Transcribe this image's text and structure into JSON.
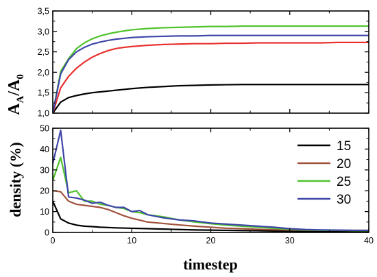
{
  "chart_data": [
    {
      "type": "line",
      "xlabel": "",
      "ylabel": "A_A/A_0",
      "ylabel_parts": {
        "a": "A",
        "a_sub": "A",
        "slash": "/",
        "b": "A",
        "b_sub": "0"
      },
      "xlim": [
        0,
        40
      ],
      "ylim": [
        1.0,
        3.5
      ],
      "y_ticks": [
        1.0,
        1.5,
        2.0,
        2.5,
        3.0,
        3.5
      ],
      "y_tick_labels": [
        "1,0",
        "1,5",
        "2,0",
        "2,5",
        "3,0",
        "3,5"
      ],
      "x_ticks": [
        0,
        10,
        20,
        30,
        40
      ],
      "grid": false,
      "series": [
        {
          "key": "15",
          "color": "#000000",
          "x": [
            0,
            1,
            2,
            3,
            4,
            5,
            6,
            7,
            8,
            9,
            10,
            12,
            14,
            16,
            18,
            20,
            22,
            24,
            26,
            28,
            30,
            32,
            34,
            36,
            38,
            40
          ],
          "values": [
            1.0,
            1.27,
            1.38,
            1.43,
            1.47,
            1.5,
            1.52,
            1.54,
            1.56,
            1.58,
            1.6,
            1.63,
            1.65,
            1.67,
            1.68,
            1.69,
            1.695,
            1.7,
            1.7,
            1.7,
            1.7,
            1.7,
            1.7,
            1.7,
            1.7,
            1.7
          ]
        },
        {
          "key": "20",
          "color": "#e8302e",
          "x": [
            0,
            1,
            2,
            3,
            4,
            5,
            6,
            7,
            8,
            9,
            10,
            12,
            14,
            16,
            18,
            20,
            22,
            24,
            26,
            28,
            30,
            32,
            34,
            36,
            38,
            40
          ],
          "values": [
            1.0,
            1.62,
            1.9,
            2.1,
            2.25,
            2.37,
            2.46,
            2.53,
            2.58,
            2.61,
            2.63,
            2.66,
            2.68,
            2.69,
            2.7,
            2.7,
            2.71,
            2.71,
            2.72,
            2.72,
            2.72,
            2.72,
            2.72,
            2.73,
            2.73,
            2.73
          ]
        },
        {
          "key": "25",
          "color": "#4ec32a",
          "x": [
            0,
            1,
            2,
            3,
            4,
            5,
            6,
            7,
            8,
            9,
            10,
            12,
            14,
            16,
            18,
            20,
            22,
            24,
            26,
            28,
            30,
            32,
            34,
            36,
            38,
            40
          ],
          "values": [
            1.0,
            2.02,
            2.33,
            2.58,
            2.72,
            2.82,
            2.89,
            2.94,
            2.98,
            3.01,
            3.04,
            3.07,
            3.09,
            3.1,
            3.11,
            3.12,
            3.12,
            3.13,
            3.13,
            3.13,
            3.13,
            3.13,
            3.13,
            3.13,
            3.13,
            3.13
          ]
        },
        {
          "key": "30",
          "color": "#3f46a8",
          "x": [
            0,
            1,
            2,
            3,
            4,
            5,
            6,
            7,
            8,
            9,
            10,
            12,
            14,
            16,
            18,
            20,
            22,
            24,
            26,
            28,
            30,
            32,
            34,
            36,
            38,
            40
          ],
          "values": [
            1.0,
            1.96,
            2.31,
            2.5,
            2.61,
            2.69,
            2.74,
            2.78,
            2.81,
            2.83,
            2.85,
            2.87,
            2.88,
            2.89,
            2.89,
            2.9,
            2.9,
            2.9,
            2.9,
            2.9,
            2.9,
            2.9,
            2.9,
            2.9,
            2.9,
            2.9
          ]
        }
      ]
    },
    {
      "type": "line",
      "xlabel": "timestep",
      "ylabel": "density (%)",
      "xlim": [
        0,
        40
      ],
      "ylim": [
        0,
        50
      ],
      "y_ticks": [
        0,
        10,
        20,
        30,
        40,
        50
      ],
      "y_tick_labels": [
        "0",
        "10",
        "20",
        "30",
        "40",
        "50"
      ],
      "x_ticks": [
        0,
        10,
        20,
        30,
        40
      ],
      "x_tick_labels": [
        "0",
        "10",
        "20",
        "30",
        "40"
      ],
      "grid": false,
      "legend_position": "right",
      "series": [
        {
          "name": "15",
          "color": "#000000",
          "x": [
            0,
            1,
            2,
            3,
            4,
            5,
            6,
            8,
            10,
            12,
            14,
            16,
            18,
            20,
            22,
            24,
            26,
            28,
            30,
            32,
            34,
            36,
            38,
            40
          ],
          "values": [
            15,
            6.5,
            4.5,
            3.5,
            3,
            2.8,
            2.5,
            2.2,
            2,
            1.8,
            1.6,
            1.4,
            1.2,
            1.1,
            1,
            0.9,
            0.8,
            0.7,
            0.6,
            0.5,
            0.5,
            0.4,
            0.4,
            0.4
          ]
        },
        {
          "name": "20",
          "color": "#a0523d",
          "x": [
            0,
            1,
            2,
            3,
            4,
            5,
            6,
            7,
            8,
            9,
            10,
            12,
            14,
            16,
            18,
            20,
            22,
            24,
            26,
            28,
            30,
            32,
            34,
            36,
            38,
            40
          ],
          "values": [
            20,
            19.5,
            15,
            13.5,
            13,
            12.5,
            12,
            11,
            9.5,
            8,
            6.8,
            5,
            4.3,
            3.6,
            3,
            2.5,
            2,
            1.8,
            1.5,
            1.3,
            1.2,
            1.1,
            1.0,
            1.0,
            1.0,
            1.0
          ]
        },
        {
          "name": "25",
          "color": "#4ec32a",
          "x": [
            0,
            1,
            2,
            3,
            4,
            5,
            6,
            7,
            8,
            9,
            10,
            11,
            12,
            14,
            16,
            18,
            20,
            22,
            24,
            26,
            28,
            30,
            32,
            34,
            36,
            38,
            40
          ],
          "values": [
            25,
            36,
            19,
            20,
            15,
            15,
            13.5,
            13,
            12,
            11.5,
            10,
            9.5,
            8.5,
            7.5,
            6,
            5,
            4.2,
            3.5,
            3,
            2.5,
            2,
            1.5,
            1.2,
            1.0,
            1.0,
            0.9,
            0.9
          ]
        },
        {
          "name": "30",
          "color": "#3f46a8",
          "x": [
            0,
            1,
            2,
            3,
            4,
            5,
            6,
            7,
            8,
            9,
            10,
            11,
            12,
            14,
            16,
            18,
            20,
            22,
            24,
            26,
            28,
            30,
            32,
            34,
            36,
            38,
            40
          ],
          "values": [
            33,
            49,
            17,
            16.5,
            15.5,
            14,
            14.5,
            13,
            12,
            12,
            10,
            10.5,
            8.5,
            7,
            6,
            5.5,
            4.5,
            4.0,
            3.5,
            3,
            2.5,
            1.8,
            1.4,
            1.2,
            1.1,
            1.0,
            1.0
          ]
        }
      ]
    }
  ]
}
